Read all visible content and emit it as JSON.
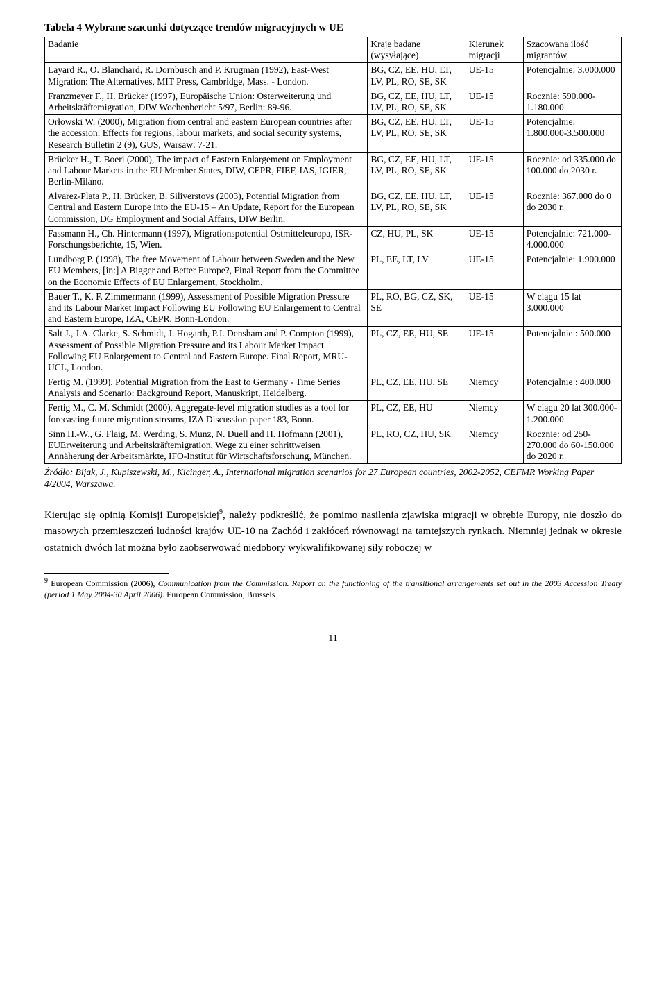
{
  "table": {
    "caption": "Tabela 4 Wybrane szacunki dotyczące trendów migracyjnych w UE",
    "header": {
      "study": "Badanie",
      "countries": "Kraje badane (wysyłające)",
      "direction": "Kierunek migracji",
      "estimate": "Szacowana ilość migrantów"
    },
    "rows": [
      {
        "study": "Layard R., O. Blanchard, R. Dornbusch and P. Krugman (1992), East-West Migration: The Alternatives, MIT Press, Cambridge, Mass. - London.",
        "countries": "BG, CZ, EE, HU, LT, LV, PL, RO, SE, SK",
        "direction": "UE-15",
        "estimate": "Potencjalnie: 3.000.000"
      },
      {
        "study": "Franzmeyer F., H. Brücker (1997), Europäische Union: Osterweiterung und Arbeitskräftemigration, DIW Wochenbericht 5/97, Berlin: 89-96.",
        "countries": "BG, CZ, EE, HU, LT, LV, PL, RO, SE, SK",
        "direction": "UE-15",
        "estimate": "Rocznie: 590.000-1.180.000"
      },
      {
        "study": "Orłowski W. (2000), Migration from central and eastern European countries after the accession: Effects for regions, labour markets, and social security systems, Research Bulletin 2 (9), GUS, Warsaw: 7-21.",
        "countries": "BG, CZ, EE, HU, LT, LV, PL, RO, SE, SK",
        "direction": "UE-15",
        "estimate": "Potencjalnie: 1.800.000-3.500.000"
      },
      {
        "study": "Brücker H., T. Boeri (2000), The impact of Eastern Enlargement on Employment and Labour Markets in the EU Member States, DIW, CEPR, FIEF, IAS, IGIER, Berlin-Milano.",
        "countries": "BG, CZ, EE, HU, LT, LV, PL, RO, SE, SK",
        "direction": "UE-15",
        "estimate": "Rocznie: od 335.000 do 100.000 do 2030 r."
      },
      {
        "study": "Alvarez-Plata P., H. Brücker, B. Siliverstovs (2003), Potential Migration from Central and Eastern Europe into the EU-15 – An Update, Report for the European Commission, DG Employment and Social Affairs, DIW Berlin.",
        "countries": "BG, CZ, EE, HU, LT, LV, PL, RO, SE, SK",
        "direction": "UE-15",
        "estimate": "Rocznie: 367.000 do 0 do 2030 r."
      },
      {
        "study": "Fassmann H., Ch. Hintermann (1997), Migrationspotential Ostmitteleuropa, ISR-Forschungsberichte, 15, Wien.",
        "countries": "CZ, HU, PL, SK",
        "direction": "UE-15",
        "estimate": "Potencjalnie: 721.000-4.000.000"
      },
      {
        "study": "Lundborg P. (1998), The free Movement of Labour between Sweden and the New EU Members, [in:] A Bigger and Better Europe?, Final Report from the Committee on the Economic Effects of EU Enlargement, Stockholm.",
        "countries": "PL, EE, LT, LV",
        "direction": "UE-15",
        "estimate": "Potencjalnie: 1.900.000"
      },
      {
        "study": "Bauer T., K. F. Zimmermann (1999), Assessment of Possible Migration Pressure and its Labour Market Impact Following EU Following EU Enlargement to Central and Eastern Europe, IZA, CEPR, Bonn-London.",
        "countries": "PL, RO, BG, CZ, SK, SE",
        "direction": "UE-15",
        "estimate": "W ciągu 15 lat 3.000.000"
      },
      {
        "study": "Salt J., J.A. Clarke, S. Schmidt, J. Hogarth, P.J. Densham and P. Compton (1999), Assessment of Possible Migration Pressure and its Labour Market Impact Following EU Enlargement to Central and Eastern Europe. Final Report, MRU-UCL, London.",
        "countries": "PL, CZ, EE, HU, SE",
        "direction": "UE-15",
        "estimate": "Potencjalnie : 500.000"
      },
      {
        "study": "Fertig M. (1999), Potential Migration from the East to Germany - Time Series Analysis and Scenario: Background Report, Manuskript, Heidelberg.",
        "countries": "PL, CZ, EE, HU, SE",
        "direction": "Niemcy",
        "estimate": "Potencjalnie : 400.000"
      },
      {
        "study": "Fertig M., C. M. Schmidt (2000), Aggregate-level migration studies as a tool for forecasting future migration streams, IZA Discussion paper 183, Bonn.",
        "countries": "PL, CZ, EE, HU",
        "direction": "Niemcy",
        "estimate": "W ciągu 20 lat 300.000-1.200.000"
      },
      {
        "study": "Sinn H.-W., G. Flaig, M. Werding, S. Munz, N. Duell and H. Hofmann (2001), EUErweiterung und Arbeitskräftemigration, Wege zu einer schrittweisen Annäherung der Arbeitsmärkte, IFO-Institut für Wirtschaftsforschung, München.",
        "countries": "PL, RO, CZ, HU, SK",
        "direction": "Niemcy",
        "estimate": "Rocznie: od 250-270.000 do 60-150.000 do 2020 r."
      }
    ],
    "source": "Źródło: Bijak, J., Kupiszewski, M., Kicinger, A., International migration scenarios for 27 European countries, 2002-2052, CEFMR Working Paper 4/2004, Warszawa."
  },
  "body_text": {
    "para1_prefix": "Kierując się opinią Komisji Europejskiej",
    "footnote_ref": "9",
    "para1_suffix": ", należy podkreślić, że pomimo nasilenia zjawiska migracji w obrębie Europy, nie doszło do masowych przemieszczeń ludności krajów UE-10 na Zachód i zakłóceń równowagi na tamtejszych rynkach. Niemniej jednak w okresie ostatnich dwóch lat można było zaobserwować niedobory wykwalifikowanej siły roboczej w"
  },
  "footnote": {
    "marker": "9",
    "prefix": " European Commission (2006), ",
    "italic1": "Communication from the Commission. Report on the functioning of the transitional arrangements set out in the 2003 Accession Treaty (period 1 May 2004-30 April 2006)",
    "suffix": ". European Commission, Brussels"
  },
  "page_number": "11"
}
